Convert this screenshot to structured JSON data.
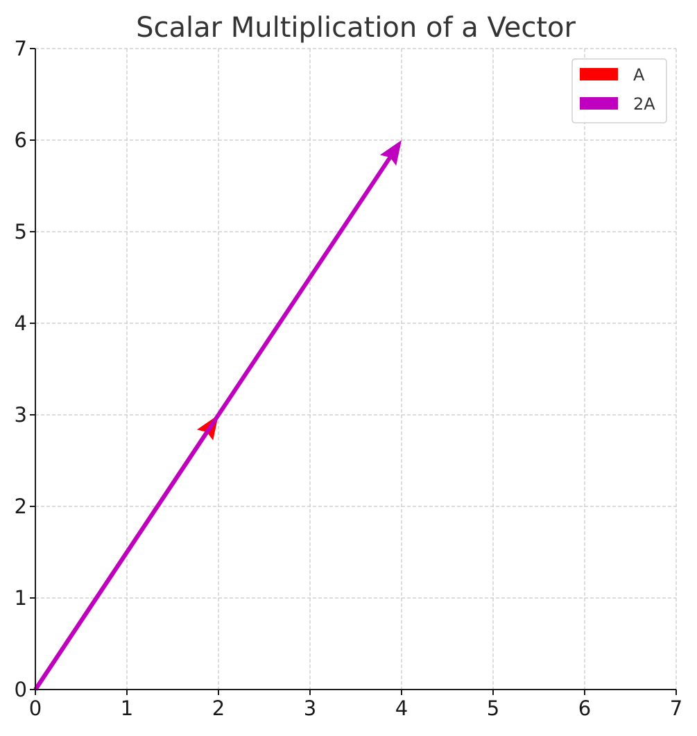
{
  "chart_data": {
    "type": "quiver",
    "title": "Scalar Multiplication of a Vector",
    "xlabel": "",
    "ylabel": "",
    "xlim": [
      0,
      7
    ],
    "ylim": [
      0,
      7
    ],
    "xticks": [
      0,
      1,
      2,
      3,
      4,
      5,
      6,
      7
    ],
    "yticks": [
      0,
      1,
      2,
      3,
      4,
      5,
      6,
      7
    ],
    "grid": true,
    "legend_position": "top-right",
    "vectors": [
      {
        "name": "A",
        "origin": [
          0,
          0
        ],
        "components": [
          2,
          3
        ],
        "color": "#ff0000"
      },
      {
        "name": "2A",
        "origin": [
          0,
          0
        ],
        "components": [
          4,
          6
        ],
        "color": "#bf00bf"
      }
    ]
  }
}
